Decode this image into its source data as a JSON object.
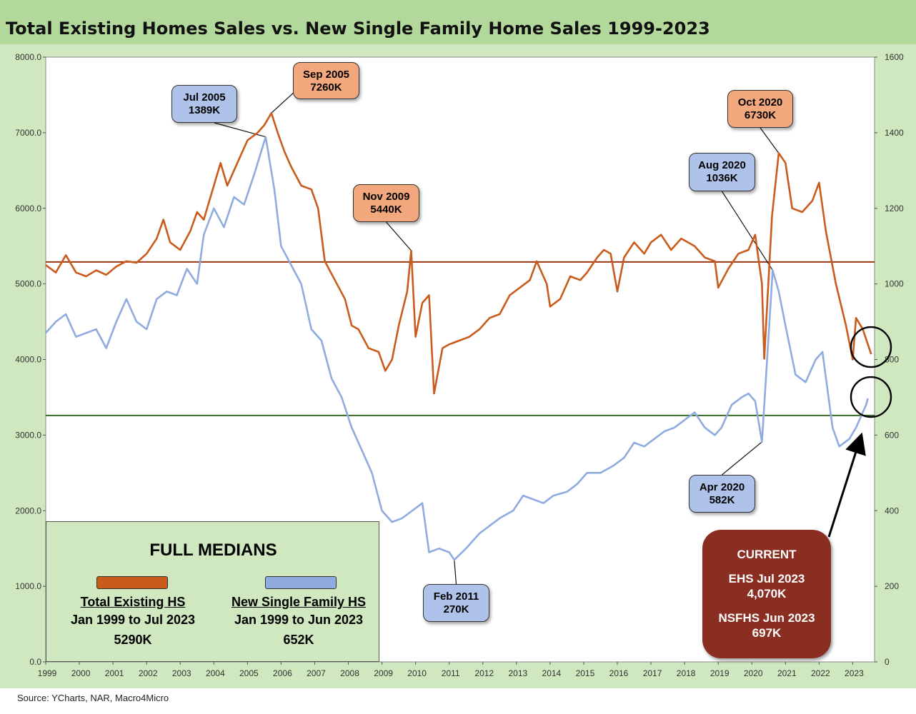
{
  "title": "Total Existing Homes Sales vs. New Single Family Home Sales 1999-2023",
  "source": "Source: YCharts, NAR, Macro4Micro",
  "colors": {
    "existing": "#c95c1c",
    "new": "#8fabe0",
    "median_existing": "#9b3512",
    "median_new": "#3a6b23"
  },
  "chart_data": {
    "type": "line",
    "title": "Total Existing Homes Sales vs. New Single Family Home Sales 1999-2023",
    "x_tick_labels": [
      "1999",
      "2000",
      "2001",
      "2002",
      "2003",
      "2004",
      "2005",
      "2006",
      "2007",
      "2008",
      "2009",
      "2010",
      "2011",
      "2012",
      "2013",
      "2014",
      "2015",
      "2016",
      "2017",
      "2018",
      "2019",
      "2020",
      "2021",
      "2022",
      "2023"
    ],
    "y_left": {
      "min": 0,
      "max": 8000,
      "ticks": [
        "0.0",
        "1000.0",
        "2000.0",
        "3000.0",
        "4000.0",
        "5000.0",
        "6000.0",
        "7000.0",
        "8000.0"
      ]
    },
    "y_right": {
      "min": 0,
      "max": 1600,
      "ticks": [
        "0",
        "200",
        "400",
        "600",
        "800",
        "1000",
        "1200",
        "1400",
        "1600"
      ]
    },
    "series": [
      {
        "name": "Total Existing HS",
        "axis": "left",
        "points": [
          [
            1999.0,
            5250
          ],
          [
            1999.3,
            5150
          ],
          [
            1999.6,
            5380
          ],
          [
            1999.9,
            5150
          ],
          [
            2000.2,
            5100
          ],
          [
            2000.5,
            5180
          ],
          [
            2000.8,
            5120
          ],
          [
            2001.1,
            5230
          ],
          [
            2001.4,
            5300
          ],
          [
            2001.7,
            5280
          ],
          [
            2002.0,
            5400
          ],
          [
            2002.3,
            5600
          ],
          [
            2002.5,
            5850
          ],
          [
            2002.7,
            5550
          ],
          [
            2003.0,
            5450
          ],
          [
            2003.3,
            5700
          ],
          [
            2003.5,
            5950
          ],
          [
            2003.7,
            5850
          ],
          [
            2004.0,
            6300
          ],
          [
            2004.2,
            6600
          ],
          [
            2004.4,
            6300
          ],
          [
            2004.7,
            6600
          ],
          [
            2005.0,
            6900
          ],
          [
            2005.3,
            7000
          ],
          [
            2005.5,
            7100
          ],
          [
            2005.71,
            7260
          ],
          [
            2005.9,
            7000
          ],
          [
            2006.1,
            6750
          ],
          [
            2006.3,
            6550
          ],
          [
            2006.6,
            6300
          ],
          [
            2006.9,
            6250
          ],
          [
            2007.1,
            6000
          ],
          [
            2007.3,
            5300
          ],
          [
            2007.6,
            5050
          ],
          [
            2007.9,
            4800
          ],
          [
            2008.1,
            4450
          ],
          [
            2008.3,
            4400
          ],
          [
            2008.6,
            4150
          ],
          [
            2008.9,
            4100
          ],
          [
            2009.1,
            3850
          ],
          [
            2009.3,
            4000
          ],
          [
            2009.5,
            4450
          ],
          [
            2009.75,
            4900
          ],
          [
            2009.87,
            5440
          ],
          [
            2010.0,
            4300
          ],
          [
            2010.2,
            4750
          ],
          [
            2010.4,
            4850
          ],
          [
            2010.55,
            3550
          ],
          [
            2010.8,
            4150
          ],
          [
            2011.0,
            4200
          ],
          [
            2011.3,
            4250
          ],
          [
            2011.6,
            4300
          ],
          [
            2011.9,
            4400
          ],
          [
            2012.2,
            4550
          ],
          [
            2012.5,
            4600
          ],
          [
            2012.8,
            4850
          ],
          [
            2013.1,
            4950
          ],
          [
            2013.4,
            5050
          ],
          [
            2013.6,
            5300
          ],
          [
            2013.9,
            5000
          ],
          [
            2014.0,
            4700
          ],
          [
            2014.3,
            4800
          ],
          [
            2014.6,
            5100
          ],
          [
            2014.9,
            5050
          ],
          [
            2015.1,
            5150
          ],
          [
            2015.4,
            5350
          ],
          [
            2015.6,
            5450
          ],
          [
            2015.8,
            5400
          ],
          [
            2016.0,
            4900
          ],
          [
            2016.2,
            5350
          ],
          [
            2016.5,
            5550
          ],
          [
            2016.8,
            5400
          ],
          [
            2017.0,
            5550
          ],
          [
            2017.3,
            5650
          ],
          [
            2017.6,
            5450
          ],
          [
            2017.9,
            5600
          ],
          [
            2018.1,
            5550
          ],
          [
            2018.3,
            5500
          ],
          [
            2018.6,
            5350
          ],
          [
            2018.9,
            5300
          ],
          [
            2019.0,
            4950
          ],
          [
            2019.3,
            5200
          ],
          [
            2019.6,
            5400
          ],
          [
            2019.9,
            5450
          ],
          [
            2020.1,
            5650
          ],
          [
            2020.3,
            5000
          ],
          [
            2020.37,
            4010
          ],
          [
            2020.6,
            5900
          ],
          [
            2020.8,
            6730
          ],
          [
            2021.0,
            6600
          ],
          [
            2021.2,
            6000
          ],
          [
            2021.5,
            5950
          ],
          [
            2021.8,
            6100
          ],
          [
            2022.0,
            6340
          ],
          [
            2022.2,
            5700
          ],
          [
            2022.5,
            5000
          ],
          [
            2022.8,
            4450
          ],
          [
            2023.0,
            4000
          ],
          [
            2023.1,
            4550
          ],
          [
            2023.3,
            4400
          ],
          [
            2023.55,
            4070
          ]
        ]
      },
      {
        "name": "New Single Family HS",
        "axis": "right",
        "points": [
          [
            1999.0,
            870
          ],
          [
            1999.3,
            900
          ],
          [
            1999.6,
            920
          ],
          [
            1999.9,
            860
          ],
          [
            2000.2,
            870
          ],
          [
            2000.5,
            880
          ],
          [
            2000.8,
            830
          ],
          [
            2001.1,
            900
          ],
          [
            2001.4,
            960
          ],
          [
            2001.7,
            900
          ],
          [
            2002.0,
            880
          ],
          [
            2002.3,
            960
          ],
          [
            2002.6,
            980
          ],
          [
            2002.9,
            970
          ],
          [
            2003.2,
            1040
          ],
          [
            2003.5,
            1000
          ],
          [
            2003.7,
            1130
          ],
          [
            2004.0,
            1200
          ],
          [
            2004.3,
            1150
          ],
          [
            2004.6,
            1230
          ],
          [
            2004.9,
            1210
          ],
          [
            2005.2,
            1290
          ],
          [
            2005.54,
            1389
          ],
          [
            2005.8,
            1250
          ],
          [
            2006.0,
            1100
          ],
          [
            2006.3,
            1050
          ],
          [
            2006.6,
            1000
          ],
          [
            2006.9,
            880
          ],
          [
            2007.2,
            850
          ],
          [
            2007.5,
            750
          ],
          [
            2007.8,
            700
          ],
          [
            2008.1,
            620
          ],
          [
            2008.4,
            560
          ],
          [
            2008.7,
            500
          ],
          [
            2009.0,
            400
          ],
          [
            2009.3,
            370
          ],
          [
            2009.6,
            380
          ],
          [
            2009.9,
            400
          ],
          [
            2010.2,
            420
          ],
          [
            2010.4,
            290
          ],
          [
            2010.7,
            300
          ],
          [
            2011.0,
            290
          ],
          [
            2011.15,
            270
          ],
          [
            2011.5,
            300
          ],
          [
            2011.9,
            340
          ],
          [
            2012.2,
            360
          ],
          [
            2012.5,
            380
          ],
          [
            2012.9,
            400
          ],
          [
            2013.2,
            440
          ],
          [
            2013.5,
            430
          ],
          [
            2013.8,
            420
          ],
          [
            2014.1,
            440
          ],
          [
            2014.5,
            450
          ],
          [
            2014.8,
            470
          ],
          [
            2015.1,
            500
          ],
          [
            2015.5,
            500
          ],
          [
            2015.9,
            520
          ],
          [
            2016.2,
            540
          ],
          [
            2016.5,
            580
          ],
          [
            2016.8,
            570
          ],
          [
            2017.1,
            590
          ],
          [
            2017.4,
            610
          ],
          [
            2017.7,
            620
          ],
          [
            2018.0,
            640
          ],
          [
            2018.3,
            660
          ],
          [
            2018.6,
            620
          ],
          [
            2018.9,
            600
          ],
          [
            2019.1,
            620
          ],
          [
            2019.4,
            680
          ],
          [
            2019.7,
            700
          ],
          [
            2019.9,
            710
          ],
          [
            2020.1,
            690
          ],
          [
            2020.3,
            582
          ],
          [
            2020.62,
            1036
          ],
          [
            2020.8,
            980
          ],
          [
            2021.0,
            890
          ],
          [
            2021.3,
            760
          ],
          [
            2021.6,
            740
          ],
          [
            2021.9,
            800
          ],
          [
            2022.1,
            820
          ],
          [
            2022.4,
            620
          ],
          [
            2022.6,
            570
          ],
          [
            2022.9,
            590
          ],
          [
            2023.1,
            620
          ],
          [
            2023.4,
            680
          ],
          [
            2023.45,
            697
          ]
        ]
      }
    ],
    "medians": [
      {
        "name": "Total Existing HS",
        "axis": "left",
        "value": 5290
      },
      {
        "name": "New Single Family HS",
        "axis": "right",
        "value": 652
      }
    ]
  },
  "annotations": [
    {
      "id": "sep2005",
      "color": "orange",
      "line1": "Sep 2005",
      "line2": "7260K"
    },
    {
      "id": "jul2005",
      "color": "blue",
      "line1": "Jul 2005",
      "line2": "1389K"
    },
    {
      "id": "nov2009",
      "color": "orange",
      "line1": "Nov 2009",
      "line2": "5440K"
    },
    {
      "id": "oct2020",
      "color": "orange",
      "line1": "Oct 2020",
      "line2": "6730K"
    },
    {
      "id": "aug2020",
      "color": "blue",
      "line1": "Aug 2020",
      "line2": "1036K"
    },
    {
      "id": "apr2020",
      "color": "blue",
      "line1": "Apr 2020",
      "line2": "582K"
    },
    {
      "id": "feb2011",
      "color": "blue",
      "line1": "Feb 2011",
      "line2": "270K"
    }
  ],
  "full_medians": {
    "title": "FULL MEDIANS",
    "existing": {
      "label": "Total Existing HS",
      "period": "Jan 1999 to Jul 2023",
      "value": "5290K"
    },
    "new": {
      "label": "New Single Family HS",
      "period": "Jan 1999 to Jun 2023",
      "value": "652K"
    }
  },
  "current": {
    "title": "CURRENT",
    "ehs_label": "EHS Jul 2023",
    "ehs_value": "4,070K",
    "nsfhs_label": "NSFHS Jun 2023",
    "nsfhs_value": "697K"
  }
}
